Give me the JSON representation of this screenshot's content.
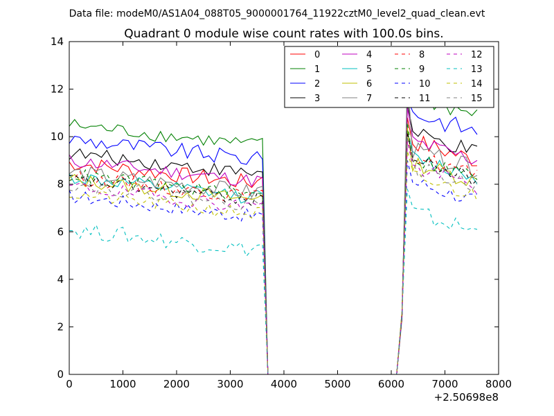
{
  "figure": {
    "suptitle": "Data file: modeM0/AS1A04_088T05_9000001764_11922cztM0_level2_quad_clean.evt"
  },
  "chart_data": {
    "type": "line",
    "title": "Quadrant 0 module wise count rates with 100.0s bins.",
    "xlabel": "",
    "ylabel": "",
    "x_offset_label": "+2.50698e8",
    "xlim": [
      0,
      8000
    ],
    "ylim": [
      0,
      14
    ],
    "xticks": [
      0,
      1000,
      2000,
      3000,
      4000,
      5000,
      6000,
      7000,
      8000
    ],
    "yticks": [
      0,
      2,
      4,
      6,
      8,
      10,
      12,
      14
    ],
    "grid": false,
    "legend": {
      "position": "top-right",
      "columns": 4
    },
    "x_segments": {
      "seg1": [
        0,
        100,
        200,
        300,
        400,
        500,
        600,
        700,
        800,
        900,
        1000,
        1100,
        1200,
        1300,
        1400,
        1500,
        1600,
        1700,
        1800,
        1900,
        2000,
        2100,
        2200,
        2300,
        2400,
        2500,
        2600,
        2700,
        2800,
        2900,
        3000,
        3100,
        3200,
        3300,
        3400,
        3500,
        3600
      ],
      "gap": [
        3700,
        6100
      ],
      "seg2": [
        6200,
        6300,
        6400,
        6500,
        6600,
        6700,
        6800,
        6900,
        7000,
        7100,
        7200,
        7300,
        7400,
        7500,
        7600
      ]
    },
    "series": [
      {
        "name": "0",
        "color": "#ff0000",
        "dash": "solid",
        "level1": 8.0,
        "amp1": 0.35,
        "level2": 9.0,
        "amp2": 0.4,
        "peak": 10.8
      },
      {
        "name": "1",
        "color": "#008000",
        "dash": "solid",
        "level1": 9.6,
        "amp1": 0.3,
        "level2": 10.9,
        "amp2": 0.4,
        "peak": 12.2
      },
      {
        "name": "2",
        "color": "#0000ff",
        "dash": "solid",
        "level1": 9.0,
        "amp1": 0.35,
        "level2": 10.2,
        "amp2": 0.4,
        "peak": 11.6
      },
      {
        "name": "3",
        "color": "#000000",
        "dash": "solid",
        "level1": 8.4,
        "amp1": 0.3,
        "level2": 9.3,
        "amp2": 0.35,
        "peak": 11.4
      },
      {
        "name": "4",
        "color": "#bf00bf",
        "dash": "solid",
        "level1": 8.1,
        "amp1": 0.3,
        "level2": 9.0,
        "amp2": 0.35,
        "peak": 11.2
      },
      {
        "name": "5",
        "color": "#00bfbf",
        "dash": "solid",
        "level1": 7.4,
        "amp1": 0.3,
        "level2": 8.3,
        "amp2": 0.35,
        "peak": 10.2
      },
      {
        "name": "6",
        "color": "#bfbf00",
        "dash": "solid",
        "level1": 7.3,
        "amp1": 0.3,
        "level2": 8.1,
        "amp2": 0.35,
        "peak": 10.4
      },
      {
        "name": "7",
        "color": "#808080",
        "dash": "solid",
        "level1": 7.6,
        "amp1": 0.35,
        "level2": 8.6,
        "amp2": 0.4,
        "peak": 12.7
      },
      {
        "name": "8",
        "color": "#ff0000",
        "dash": "dashed",
        "level1": 7.4,
        "amp1": 0.3,
        "level2": 8.4,
        "amp2": 0.35,
        "peak": 10.0
      },
      {
        "name": "9",
        "color": "#008000",
        "dash": "dashed",
        "level1": 7.5,
        "amp1": 0.3,
        "level2": 8.3,
        "amp2": 0.35,
        "peak": 10.6
      },
      {
        "name": "10",
        "color": "#0000ff",
        "dash": "dashed",
        "level1": 6.6,
        "amp1": 0.3,
        "level2": 7.3,
        "amp2": 0.35,
        "peak": 9.0
      },
      {
        "name": "11",
        "color": "#000000",
        "dash": "dashed",
        "level1": 7.3,
        "amp1": 0.3,
        "level2": 8.2,
        "amp2": 0.35,
        "peak": 10.2
      },
      {
        "name": "12",
        "color": "#bf00bf",
        "dash": "dashed",
        "level1": 7.0,
        "amp1": 0.3,
        "level2": 7.9,
        "amp2": 0.35,
        "peak": 9.8
      },
      {
        "name": "13",
        "color": "#00bfbf",
        "dash": "dashed",
        "level1": 5.2,
        "amp1": 0.35,
        "level2": 6.0,
        "amp2": 0.4,
        "peak": 7.8
      },
      {
        "name": "14",
        "color": "#bfbf00",
        "dash": "dashed",
        "level1": 6.7,
        "amp1": 0.3,
        "level2": 7.5,
        "amp2": 0.35,
        "peak": 9.4
      },
      {
        "name": "15",
        "color": "#808080",
        "dash": "dashed",
        "level1": 7.1,
        "amp1": 0.3,
        "level2": 7.9,
        "amp2": 0.35,
        "peak": 10.0
      }
    ]
  }
}
